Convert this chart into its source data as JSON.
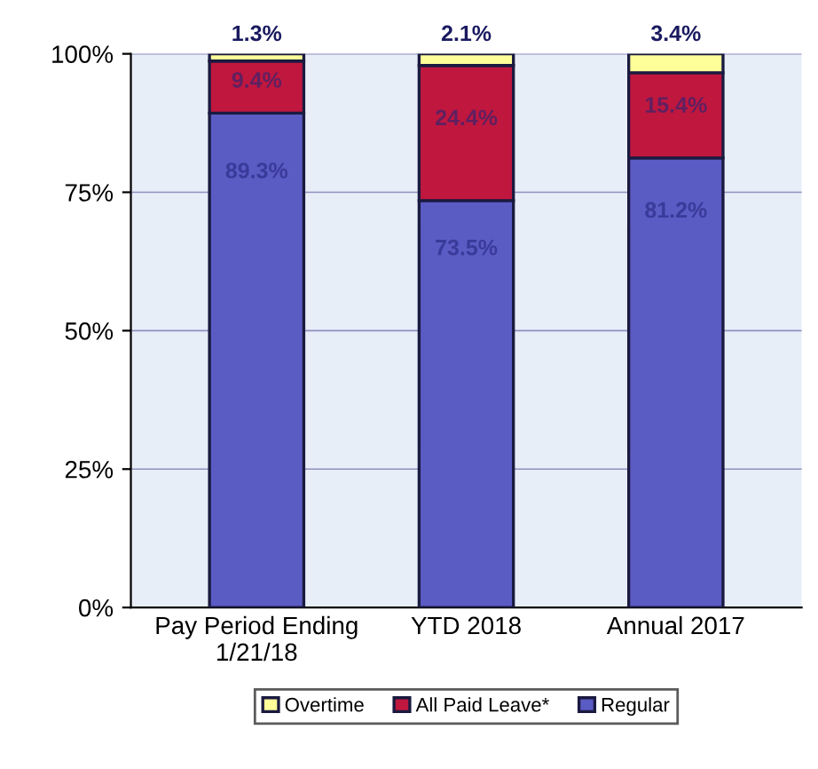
{
  "chart_data": {
    "type": "bar",
    "stacked": true,
    "categories": [
      "Pay Period Ending\n1/21/18",
      "YTD 2018",
      "Annual 2017"
    ],
    "series": [
      {
        "name": "Regular",
        "color": "#5b5bc4",
        "values": [
          89.3,
          73.5,
          81.2
        ],
        "value_labels": [
          "89.3%",
          "73.5%",
          "81.2%"
        ]
      },
      {
        "name": "All Paid Leave*",
        "color": "#c0173f",
        "values": [
          9.4,
          24.4,
          15.4
        ],
        "value_labels": [
          "9.4%",
          "24.4%",
          "15.4%"
        ]
      },
      {
        "name": "Overtime",
        "color": "#ffff99",
        "values": [
          1.3,
          2.1,
          3.4
        ],
        "value_labels": [
          "1.3%",
          "2.1%",
          "3.4%"
        ]
      }
    ],
    "ylim": [
      0,
      100
    ],
    "yticks": [
      {
        "value": 0,
        "label": "0%"
      },
      {
        "value": 25,
        "label": "25%"
      },
      {
        "value": 50,
        "label": "50%"
      },
      {
        "value": 75,
        "label": "75%"
      },
      {
        "value": 100,
        "label": "100%"
      }
    ],
    "grid": "y",
    "legend": "bottom"
  }
}
